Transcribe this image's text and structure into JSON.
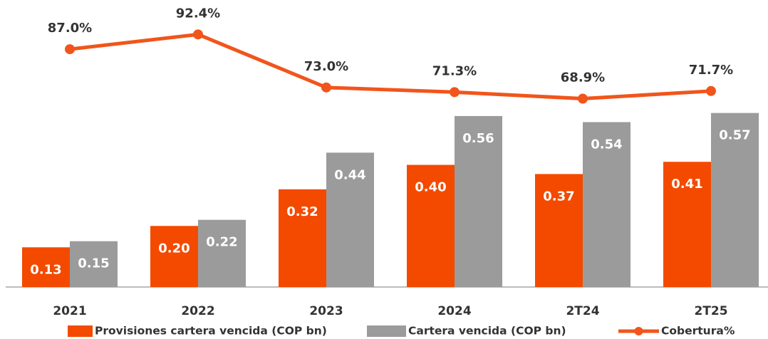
{
  "chart_data": {
    "type": "bar",
    "categories": [
      "2021",
      "2022",
      "2023",
      "2024",
      "2T24",
      "2T25"
    ],
    "ylim": [
      0,
      0.94
    ],
    "y2lim": [
      0,
      105
    ],
    "legend": "bottom",
    "series": [
      {
        "name": "Provisiones cartera vencida (COP bn)",
        "type": "bar",
        "color": "#f34a00",
        "values": [
          0.13,
          0.2,
          0.32,
          0.4,
          0.37,
          0.41
        ],
        "value_labels": [
          "0.13",
          "0.20",
          "0.32",
          "0.40",
          "0.37",
          "0.41"
        ]
      },
      {
        "name": "Cartera vencida (COP bn)",
        "type": "bar",
        "color": "#9b9b9b",
        "values": [
          0.15,
          0.22,
          0.44,
          0.56,
          0.54,
          0.57
        ],
        "value_labels": [
          "0.15",
          "0.22",
          "0.44",
          "0.56",
          "0.54",
          "0.57"
        ]
      },
      {
        "name": "Cobertura%",
        "type": "line",
        "axis": "y2",
        "color": "#f1551b",
        "values": [
          87.0,
          92.4,
          73.0,
          71.3,
          68.9,
          71.7
        ],
        "value_labels": [
          "87.0%",
          "92.4%",
          "73.0%",
          "71.3%",
          "68.9%",
          "71.7%"
        ]
      }
    ]
  }
}
